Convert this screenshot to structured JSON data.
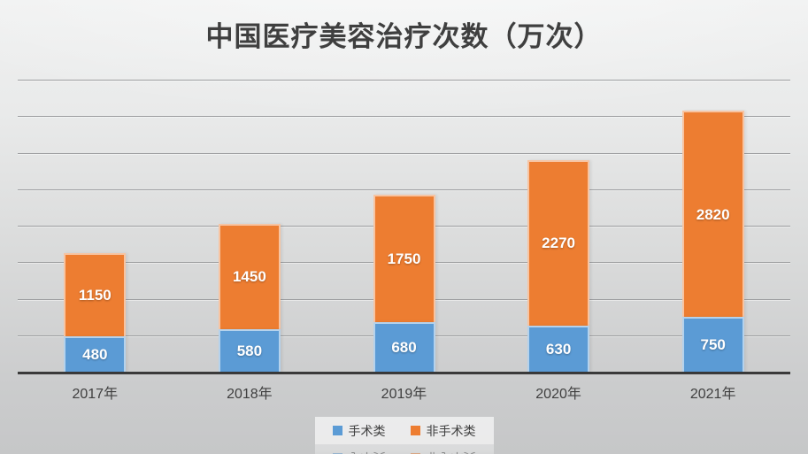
{
  "chart_title": "中国医疗美容治疗次数（万次）",
  "chart_data": {
    "type": "bar",
    "stacked": true,
    "title": "中国医疗美容治疗次数（万次）",
    "categories": [
      "2017年",
      "2018年",
      "2019年",
      "2020年",
      "2021年"
    ],
    "series": [
      {
        "name": "手术类",
        "color": "#5B9BD5",
        "values": [
          480,
          580,
          680,
          630,
          750
        ]
      },
      {
        "name": "非手术类",
        "color": "#ED7D31",
        "values": [
          1150,
          1450,
          1750,
          2270,
          2820
        ]
      }
    ],
    "xlabel": "",
    "ylabel": "",
    "ylim": [
      0,
      4000
    ],
    "gridline_step": 500,
    "grid": "horizontal",
    "y_tick_labels_visible": false,
    "data_labels_visible": true,
    "legend_position": "bottom",
    "colors": {
      "grid": "#9d9ea0",
      "axis_line": "#3a3a3a",
      "title_text": "#3f3f3f",
      "axis_text": "#3f3f3f",
      "data_label_text": "#ffffff",
      "legend_bg": "#f4f4f4"
    }
  }
}
